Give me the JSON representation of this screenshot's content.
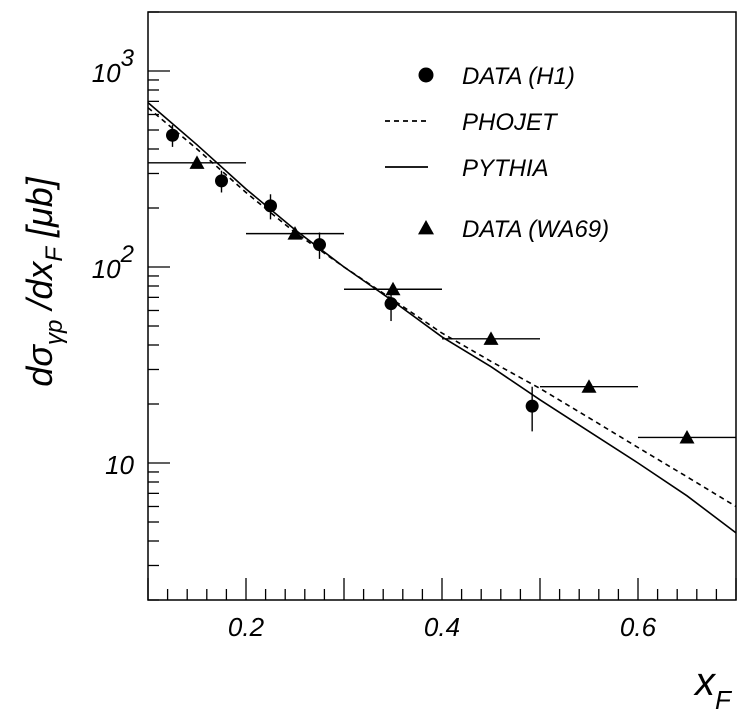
{
  "chart_data": {
    "type": "scatter",
    "x_axis": {
      "label": "x",
      "label_sub": "F",
      "range": [
        0.1,
        0.7
      ],
      "scale": "linear",
      "ticks": [
        0.2,
        0.4,
        0.6
      ],
      "tick_labels": [
        "0.2",
        "0.4",
        "0.6"
      ]
    },
    "y_axis": {
      "label_parts": [
        "dσ",
        "γp",
        " /dx",
        "F",
        " [μb]"
      ],
      "range": [
        2,
        2000
      ],
      "scale": "log",
      "major_ticks": [
        10,
        100,
        1000
      ],
      "tick_labels": [
        {
          "base": "10",
          "exp": ""
        },
        {
          "base": "10",
          "exp": "2"
        },
        {
          "base": "10",
          "exp": "3"
        }
      ]
    },
    "grid": false,
    "legend_position": "top-right",
    "series": [
      {
        "name": "DATA (H1)",
        "kind": "points",
        "marker": "circle",
        "x": [
          0.125,
          0.175,
          0.225,
          0.275,
          0.348,
          0.492
        ],
        "y": [
          470,
          275,
          205,
          130,
          65,
          19.5
        ],
        "y_err_low": [
          60,
          35,
          30,
          20,
          12,
          5
        ],
        "y_err_high": [
          60,
          35,
          30,
          20,
          12,
          5
        ]
      },
      {
        "name": "PHOJET",
        "kind": "line",
        "dash": "dashed",
        "x": [
          0.1,
          0.15,
          0.2,
          0.25,
          0.3,
          0.35,
          0.4,
          0.45,
          0.5,
          0.55,
          0.6,
          0.65,
          0.7
        ],
        "y": [
          650,
          400,
          240,
          150,
          100,
          68,
          46,
          33,
          24,
          17,
          12,
          8.5,
          6
        ]
      },
      {
        "name": "PYTHIA",
        "kind": "line",
        "dash": "solid",
        "x": [
          0.1,
          0.15,
          0.2,
          0.25,
          0.3,
          0.35,
          0.4,
          0.45,
          0.5,
          0.55,
          0.6,
          0.65,
          0.7
        ],
        "y": [
          690,
          420,
          250,
          155,
          100,
          67,
          44,
          31,
          21,
          14.5,
          10,
          6.8,
          4.4
        ]
      },
      {
        "name": "DATA (WA69)",
        "kind": "points",
        "marker": "triangle",
        "x": [
          0.15,
          0.25,
          0.35,
          0.45,
          0.55,
          0.65
        ],
        "y": [
          340,
          148,
          77,
          43,
          24.5,
          13.5
        ],
        "x_err": [
          0.05,
          0.05,
          0.05,
          0.05,
          0.05,
          0.05
        ]
      }
    ]
  },
  "colors": {
    "background": "#ffffff",
    "ink": "#000000"
  }
}
